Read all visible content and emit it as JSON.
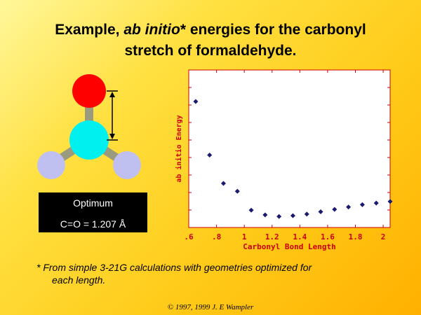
{
  "title": {
    "line1": "Example, ab initio* energies for the carbonyl",
    "line1_pre": "Example, ",
    "line1_em": "ab initio",
    "line1_post": "* energies for the carbonyl",
    "line2": "stretch of formaldehyde."
  },
  "infobox": {
    "label": "Optimum",
    "value": "C=O  = 1.207 Å"
  },
  "footnote": {
    "line1": "* From simple 3-21G calculations with geometries optimized for",
    "line2": "each length."
  },
  "copyright": "© 1997, 1999 J. E Wampler",
  "colors": {
    "oxygen": "#ff0000",
    "carbon": "#00f0f0",
    "hydrogen": "#c0c0f0",
    "bond": "#9a9a7e",
    "axis_text": "#cc0000",
    "points": "#1a1a70",
    "plot_bg": "#ffffff"
  },
  "chart_data": {
    "type": "scatter",
    "title": "",
    "xlabel": "Carbonyl Bond Length",
    "ylabel": "ab initio Energy",
    "xlim": [
      0.6,
      2.05
    ],
    "ylim": [
      0,
      10
    ],
    "xticks": [
      0.6,
      0.8,
      1.0,
      1.2,
      1.4,
      1.6,
      1.8,
      2.0
    ],
    "xtick_labels": [
      ".6",
      ".8",
      "1",
      "1.2",
      "1.4",
      "1.6",
      "1.8",
      "2"
    ],
    "grid": false,
    "x": [
      0.65,
      0.75,
      0.85,
      0.95,
      1.05,
      1.15,
      1.25,
      1.35,
      1.45,
      1.55,
      1.65,
      1.75,
      1.85,
      1.95,
      2.05
    ],
    "y": [
      8.0,
      4.6,
      2.8,
      2.3,
      1.1,
      0.8,
      0.7,
      0.75,
      0.85,
      1.0,
      1.15,
      1.3,
      1.45,
      1.55,
      1.65
    ]
  }
}
